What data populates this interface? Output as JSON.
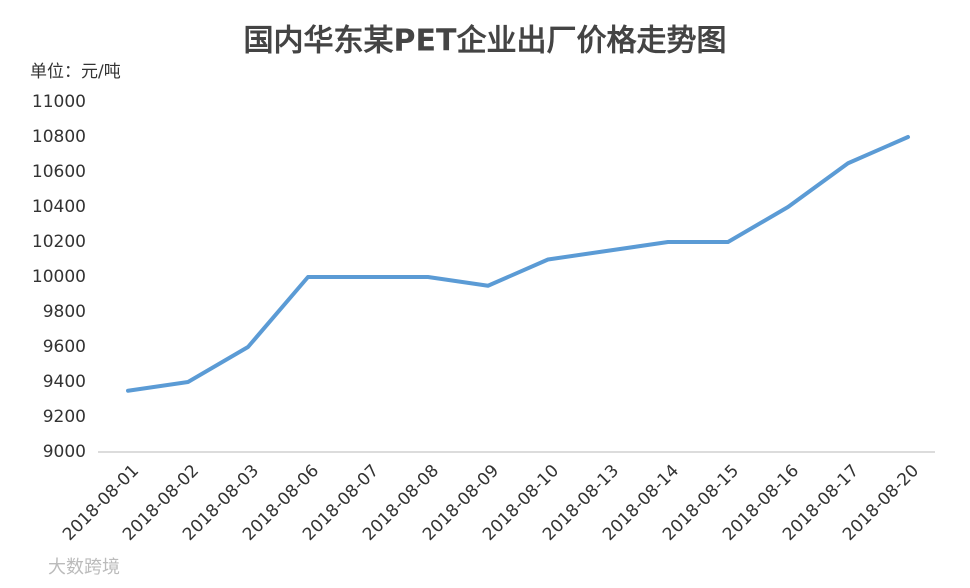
{
  "chart_data": {
    "type": "line",
    "title": "国内华东某PET企业出厂价格走势图",
    "y_unit_label": "单位：元/吨",
    "categories": [
      "2018-08-01",
      "2018-08-02",
      "2018-08-03",
      "2018-08-06",
      "2018-08-07",
      "2018-08-08",
      "2018-08-09",
      "2018-08-10",
      "2018-08-13",
      "2018-08-14",
      "2018-08-15",
      "2018-08-16",
      "2018-08-17",
      "2018-08-20"
    ],
    "values": [
      9350,
      9400,
      9600,
      10000,
      10000,
      10000,
      9950,
      10100,
      10150,
      10200,
      10200,
      10400,
      10650,
      10800
    ],
    "color": "#5b9bd5",
    "ylim": [
      9000,
      11000
    ],
    "yticks": [
      9000,
      9200,
      9400,
      9600,
      9800,
      10000,
      10200,
      10400,
      10600,
      10800,
      11000
    ],
    "grid": false,
    "watermark": "大数跨境"
  }
}
